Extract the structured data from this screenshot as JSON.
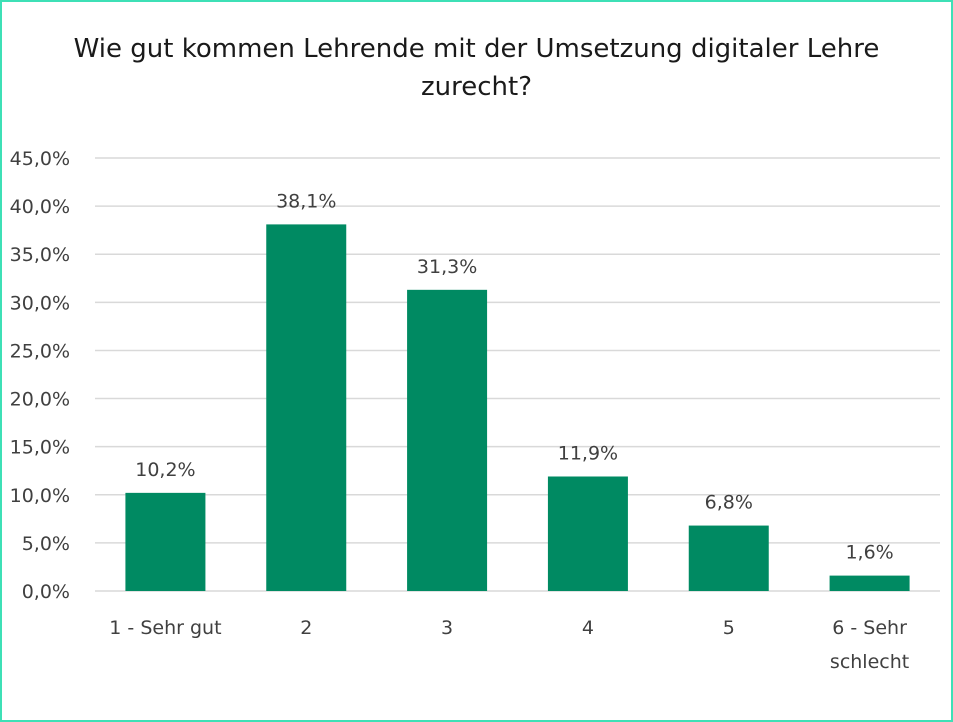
{
  "chart_data": {
    "type": "bar",
    "title_lines": [
      "Wie gut kommen Lehrende mit der Umsetzung digitaler Lehre",
      "zurecht?"
    ],
    "categories": [
      [
        "1 - Sehr gut"
      ],
      [
        "2"
      ],
      [
        "3"
      ],
      [
        "4"
      ],
      [
        "5"
      ],
      [
        "6 - Sehr",
        "schlecht"
      ]
    ],
    "values": [
      10.2,
      38.1,
      31.3,
      11.9,
      6.8,
      1.6
    ],
    "data_labels": [
      "10,2%",
      "38,1%",
      "31,3%",
      "11,9%",
      "6,8%",
      "1,6%"
    ],
    "ylim": [
      0,
      45
    ],
    "yticks": [
      0,
      5,
      10,
      15,
      20,
      25,
      30,
      35,
      40,
      45
    ],
    "ytick_labels": [
      "0,0%",
      "5,0%",
      "10,0%",
      "15,0%",
      "20,0%",
      "25,0%",
      "30,0%",
      "35,0%",
      "40,0%",
      "45,0%"
    ],
    "grid": true,
    "bar_color": "#008a62",
    "grid_color": "#d9d9d9",
    "frame_color": "#3ee0b6"
  }
}
